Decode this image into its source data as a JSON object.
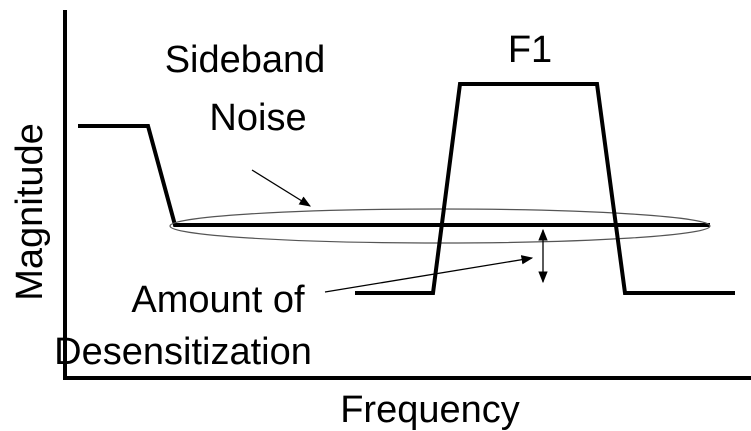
{
  "axes": {
    "y_label": "Magnitude",
    "x_label": "Frequency"
  },
  "labels": {
    "signal": "F1",
    "noise": [
      "Sideband",
      "Noise"
    ],
    "desensitization": [
      "Amount of",
      "Desensitization"
    ]
  }
}
